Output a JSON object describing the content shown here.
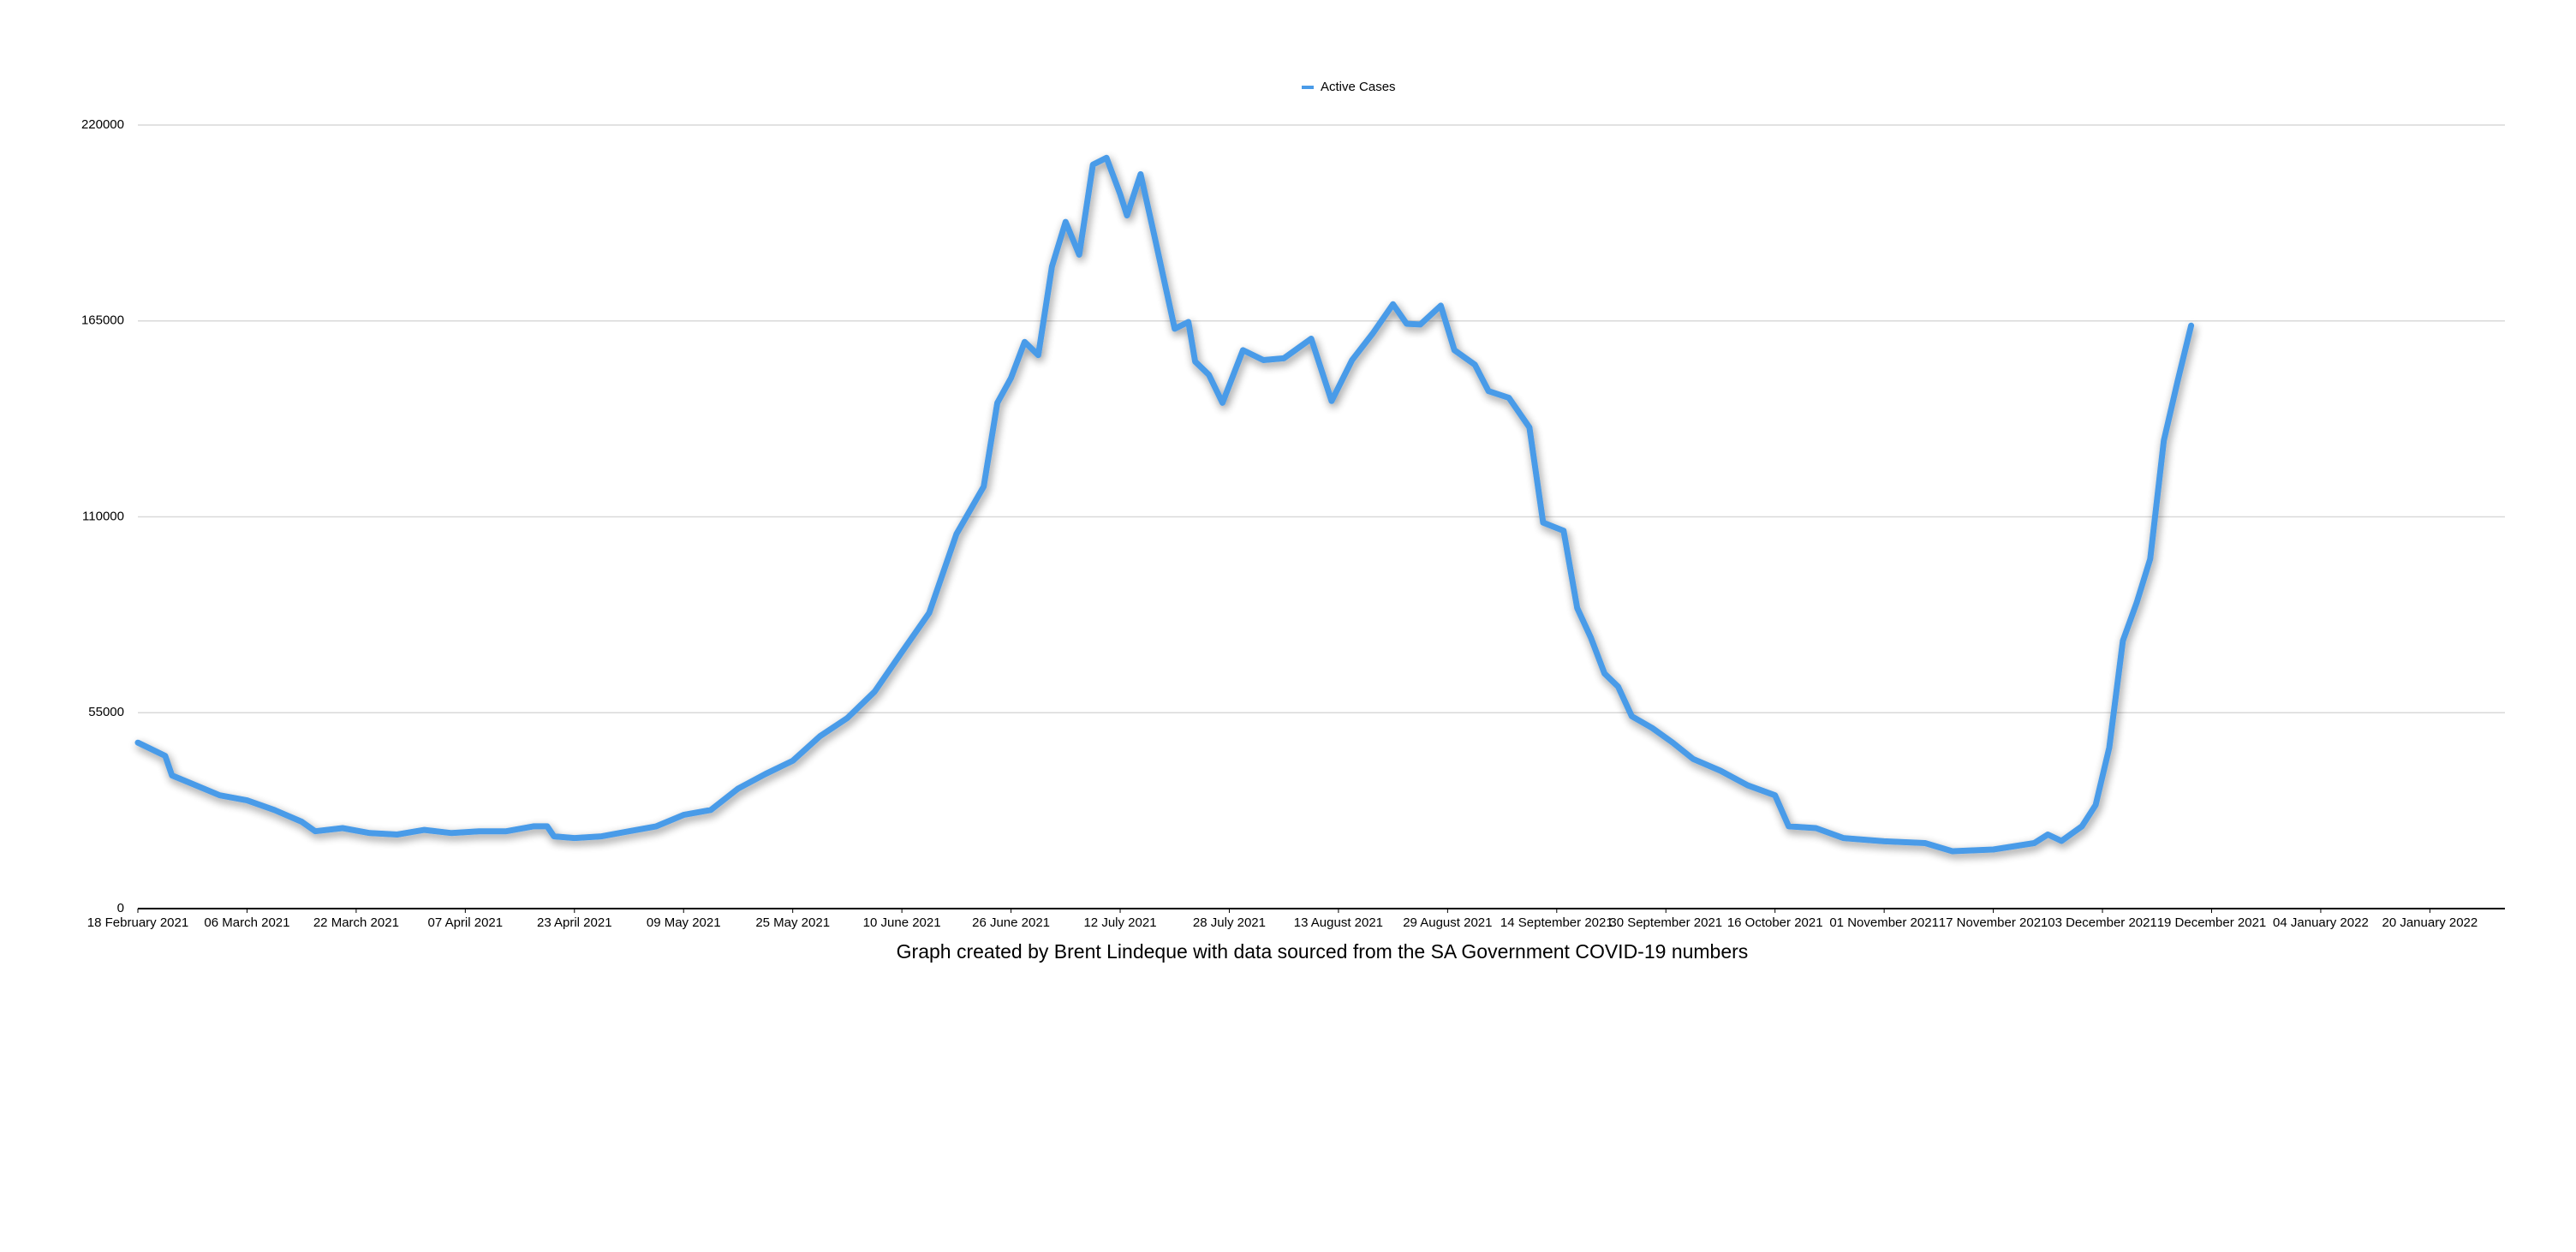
{
  "chart_data": {
    "type": "line",
    "caption": "Graph created by Brent Lindeque with data sourced from the SA Government COVID-19 numbers",
    "x": [
      "2021-02-18",
      "2021-02-22",
      "2021-02-23",
      "2021-02-26",
      "2021-03-02",
      "2021-03-06",
      "2021-03-10",
      "2021-03-14",
      "2021-03-16",
      "2021-03-20",
      "2021-03-24",
      "2021-03-28",
      "2021-04-01",
      "2021-04-05",
      "2021-04-09",
      "2021-04-13",
      "2021-04-17",
      "2021-04-19",
      "2021-04-20",
      "2021-04-23",
      "2021-04-27",
      "2021-05-01",
      "2021-05-05",
      "2021-05-09",
      "2021-05-13",
      "2021-05-17",
      "2021-05-21",
      "2021-05-25",
      "2021-05-29",
      "2021-06-02",
      "2021-06-06",
      "2021-06-10",
      "2021-06-14",
      "2021-06-18",
      "2021-06-22",
      "2021-06-24",
      "2021-06-26",
      "2021-06-28",
      "2021-06-30",
      "2021-07-02",
      "2021-07-04",
      "2021-07-06",
      "2021-07-08",
      "2021-07-10",
      "2021-07-12",
      "2021-07-13",
      "2021-07-15",
      "2021-07-17",
      "2021-07-20",
      "2021-07-22",
      "2021-07-23",
      "2021-07-25",
      "2021-07-27",
      "2021-07-30",
      "2021-08-02",
      "2021-08-05",
      "2021-08-09",
      "2021-08-12",
      "2021-08-15",
      "2021-08-18",
      "2021-08-21",
      "2021-08-23",
      "2021-08-25",
      "2021-08-28",
      "2021-08-30",
      "2021-09-02",
      "2021-09-04",
      "2021-09-07",
      "2021-09-10",
      "2021-09-12",
      "2021-09-15",
      "2021-09-17",
      "2021-09-19",
      "2021-09-21",
      "2021-09-23",
      "2021-09-25",
      "2021-09-28",
      "2021-10-01",
      "2021-10-04",
      "2021-10-08",
      "2021-10-12",
      "2021-10-16",
      "2021-10-18",
      "2021-10-22",
      "2021-10-26",
      "2021-11-01",
      "2021-11-07",
      "2021-11-11",
      "2021-11-17",
      "2021-11-23",
      "2021-11-25",
      "2021-11-27",
      "2021-11-30",
      "2021-12-02",
      "2021-12-04",
      "2021-12-06",
      "2021-12-08",
      "2021-12-10",
      "2021-12-12",
      "2021-12-14",
      "2021-12-16"
    ],
    "series": [
      {
        "name": "Active Cases",
        "color": "#4a9be8",
        "values": [
          46600,
          42900,
          37400,
          35000,
          31800,
          30400,
          27700,
          24400,
          21700,
          22600,
          21200,
          20800,
          22100,
          21200,
          21700,
          21700,
          23100,
          23100,
          20300,
          19800,
          20300,
          21700,
          23100,
          26300,
          27700,
          33700,
          37800,
          41500,
          48400,
          53500,
          60900,
          72000,
          83000,
          105200,
          118500,
          142000,
          149000,
          159100,
          155400,
          180300,
          192800,
          183600,
          208900,
          210800,
          200600,
          194600,
          206200,
          189100,
          162800,
          164700,
          153600,
          149900,
          142000,
          156800,
          154000,
          154500,
          160000,
          142500,
          154000,
          161400,
          169700,
          164200,
          164000,
          169300,
          156800,
          152700,
          145300,
          143400,
          135100,
          108400,
          106100,
          84400,
          76100,
          66000,
          62300,
          54000,
          50700,
          46600,
          42000,
          38700,
          34600,
          31800,
          23100,
          22600,
          19800,
          18900,
          18400,
          16100,
          16600,
          18400,
          20800,
          19000,
          23100,
          29100,
          45200,
          75200,
          85800,
          98200,
          131400,
          148000,
          163700
        ]
      }
    ],
    "xlim": [
      "2021-02-18",
      "2022-01-31"
    ],
    "xticks": [
      {
        "value": "2021-02-18",
        "label": "18 February 2021"
      },
      {
        "value": "2021-03-06",
        "label": "06 March 2021"
      },
      {
        "value": "2021-03-22",
        "label": "22 March 2021"
      },
      {
        "value": "2021-04-07",
        "label": "07 April 2021"
      },
      {
        "value": "2021-04-23",
        "label": "23 April 2021"
      },
      {
        "value": "2021-05-09",
        "label": "09 May 2021"
      },
      {
        "value": "2021-05-25",
        "label": "25 May 2021"
      },
      {
        "value": "2021-06-10",
        "label": "10 June 2021"
      },
      {
        "value": "2021-06-26",
        "label": "26 June 2021"
      },
      {
        "value": "2021-07-12",
        "label": "12 July 2021"
      },
      {
        "value": "2021-07-28",
        "label": "28 July 2021"
      },
      {
        "value": "2021-08-13",
        "label": "13 August 2021"
      },
      {
        "value": "2021-08-29",
        "label": "29 August 2021"
      },
      {
        "value": "2021-09-14",
        "label": "14 September 2021"
      },
      {
        "value": "2021-09-30",
        "label": "30 September 2021"
      },
      {
        "value": "2021-10-16",
        "label": "16 October 2021"
      },
      {
        "value": "2021-11-01",
        "label": "01 November 2021"
      },
      {
        "value": "2021-11-17",
        "label": "17 November 2021"
      },
      {
        "value": "2021-12-03",
        "label": "03 December 2021"
      },
      {
        "value": "2021-12-19",
        "label": "19 December 2021"
      },
      {
        "value": "2022-01-04",
        "label": "04 January 2022"
      },
      {
        "value": "2022-01-20",
        "label": "20 January 2022"
      }
    ],
    "ylim": [
      0,
      220000
    ],
    "yticks": [
      0,
      55000,
      110000,
      165000,
      220000
    ],
    "grid": true,
    "legend": "top"
  }
}
